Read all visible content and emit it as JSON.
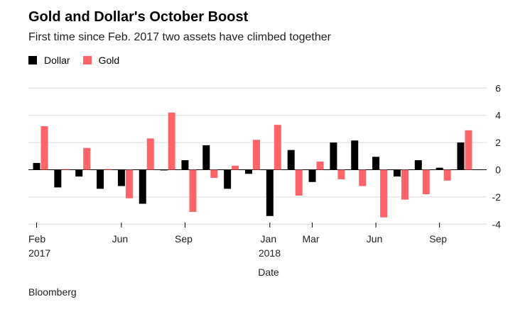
{
  "chart_data": {
    "type": "bar",
    "title": "Gold and Dollar's October Boost",
    "subtitle": "First time since Feb. 2017 two assets have climbed together",
    "xlabel": "Date",
    "ylabel": "",
    "ylim": [
      -4,
      6
    ],
    "yticks": [
      6,
      4,
      2,
      0,
      -2,
      -4
    ],
    "y_tick_labels": [
      "6",
      "4",
      "2",
      "0",
      "-2",
      "-4"
    ],
    "grid": true,
    "legend": "top-left",
    "categories": [
      "Feb 2017",
      "Mar 2017",
      "Apr 2017",
      "May 2017",
      "Jun 2017",
      "Jul 2017",
      "Aug 2017",
      "Sep 2017",
      "Oct 2017",
      "Nov 2017",
      "Dec 2017",
      "Jan 2018",
      "Feb 2018",
      "Mar 2018",
      "Apr 2018",
      "May 2018",
      "Jun 2018",
      "Jul 2018",
      "Aug 2018",
      "Sep 2018",
      "Oct 2018"
    ],
    "x_tick_labels": [
      {
        "index": 0,
        "label": "Feb",
        "year": "2017"
      },
      {
        "index": 4,
        "label": "Jun",
        "year": ""
      },
      {
        "index": 7,
        "label": "Sep",
        "year": ""
      },
      {
        "index": 11,
        "label": "Jan",
        "year": "2018"
      },
      {
        "index": 13,
        "label": "Mar",
        "year": ""
      },
      {
        "index": 16,
        "label": "Jun",
        "year": ""
      },
      {
        "index": 19,
        "label": "Sep",
        "year": ""
      }
    ],
    "series": [
      {
        "name": "Dollar",
        "color": "#000000",
        "values": [
          0.5,
          -1.3,
          -0.5,
          -1.4,
          -1.2,
          -2.5,
          -0.05,
          0.7,
          1.8,
          -1.4,
          -0.3,
          -3.4,
          1.45,
          -0.9,
          2.0,
          2.15,
          0.95,
          -0.5,
          0.7,
          0.15,
          2.0
        ]
      },
      {
        "name": "Gold",
        "color": "#ff6468",
        "values": [
          3.2,
          0.05,
          1.6,
          0.05,
          -2.1,
          2.3,
          4.2,
          -3.1,
          -0.6,
          0.3,
          2.2,
          3.3,
          -1.9,
          0.6,
          -0.7,
          -1.2,
          -3.5,
          -2.2,
          -1.8,
          -0.8,
          2.9
        ]
      }
    ]
  },
  "source": "Bloomberg"
}
